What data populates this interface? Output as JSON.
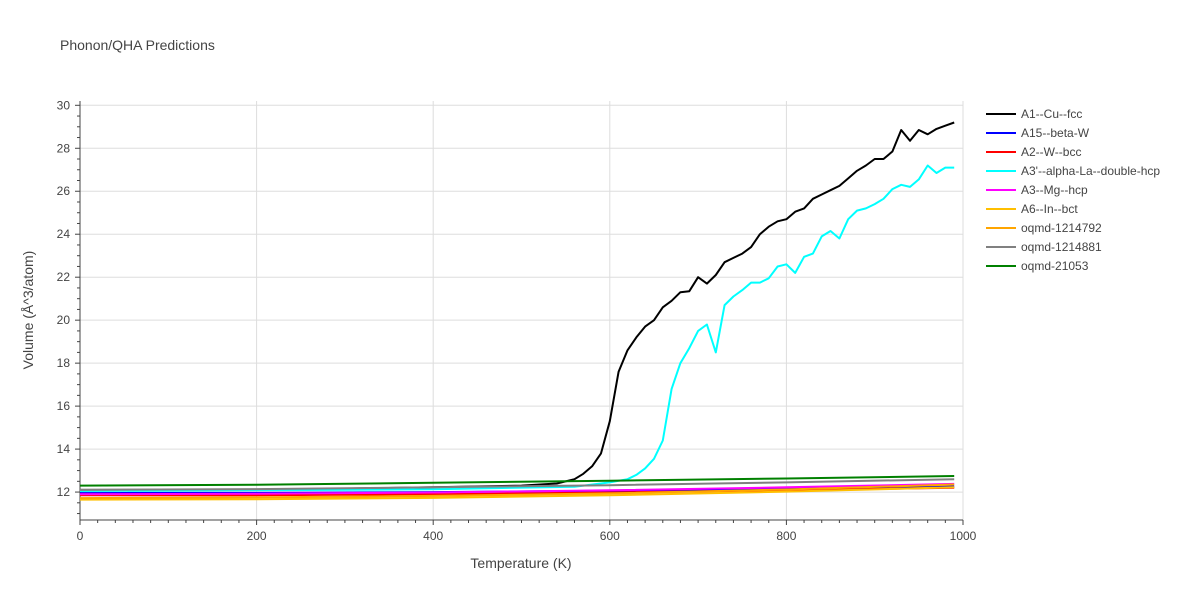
{
  "chart_data": {
    "type": "line",
    "title": "Phonon/QHA Predictions",
    "xlabel": "Temperature (K)",
    "ylabel": "Volume (Å^3/atom)",
    "xlim": [
      0,
      1000
    ],
    "ylim": [
      10.7,
      30.2
    ],
    "x_ticks": [
      0,
      200,
      400,
      600,
      800,
      1000
    ],
    "y_ticks": [
      12,
      14,
      16,
      18,
      20,
      22,
      24,
      26,
      28,
      30
    ],
    "grid": true,
    "legend_position": "right",
    "series": [
      {
        "name": "A1--Cu--fcc",
        "color": "#000000",
        "x": [
          0,
          100,
          200,
          300,
          400,
          500,
          540,
          560,
          570,
          580,
          590,
          600,
          610,
          620,
          630,
          640,
          650,
          660,
          670,
          680,
          690,
          700,
          710,
          720,
          730,
          740,
          750,
          760,
          770,
          780,
          790,
          800,
          810,
          820,
          830,
          840,
          850,
          860,
          870,
          880,
          890,
          900,
          910,
          920,
          930,
          940,
          950,
          960,
          970,
          980,
          990
        ],
        "y": [
          12.1,
          12.1,
          12.12,
          12.16,
          12.22,
          12.3,
          12.4,
          12.6,
          12.85,
          13.2,
          13.8,
          15.3,
          17.6,
          18.6,
          19.2,
          19.7,
          20.0,
          20.6,
          20.9,
          21.3,
          21.35,
          22.0,
          21.7,
          22.1,
          22.7,
          22.9,
          23.1,
          23.4,
          24.0,
          24.35,
          24.6,
          24.7,
          25.05,
          25.2,
          25.65,
          25.85,
          26.05,
          26.25,
          26.6,
          26.95,
          27.2,
          27.5,
          27.5,
          27.85,
          28.85,
          28.35,
          28.85,
          28.65,
          28.9,
          29.05,
          29.2
        ]
      },
      {
        "name": "A15--beta-W",
        "color": "#0000ff",
        "x": [
          0,
          200,
          400,
          600,
          800,
          990
        ],
        "y": [
          11.95,
          11.96,
          12.0,
          12.06,
          12.15,
          12.26
        ]
      },
      {
        "name": "A2--W--bcc",
        "color": "#ff0000",
        "x": [
          0,
          200,
          400,
          600,
          800,
          990
        ],
        "y": [
          11.85,
          11.85,
          11.9,
          11.98,
          12.08,
          12.2
        ]
      },
      {
        "name": "A3'--alpha-La--double-hcp",
        "color": "#00ffff",
        "x": [
          0,
          200,
          400,
          560,
          600,
          620,
          630,
          640,
          650,
          660,
          670,
          680,
          690,
          700,
          710,
          720,
          730,
          740,
          750,
          760,
          770,
          780,
          790,
          800,
          810,
          820,
          830,
          840,
          850,
          860,
          870,
          880,
          890,
          900,
          910,
          920,
          930,
          940,
          950,
          960,
          970,
          980,
          990
        ],
        "y": [
          12.05,
          12.08,
          12.13,
          12.25,
          12.45,
          12.6,
          12.8,
          13.1,
          13.55,
          14.4,
          16.8,
          18.0,
          18.7,
          19.5,
          19.8,
          18.5,
          20.7,
          21.1,
          21.4,
          21.75,
          21.75,
          21.95,
          22.5,
          22.6,
          22.2,
          22.95,
          23.1,
          23.9,
          24.15,
          23.8,
          24.7,
          25.1,
          25.2,
          25.4,
          25.65,
          26.1,
          26.3,
          26.2,
          26.55,
          27.2,
          26.85,
          27.1,
          27.1
        ]
      },
      {
        "name": "A3--Mg--hcp",
        "color": "#ff00ff",
        "x": [
          0,
          200,
          400,
          600,
          800,
          990
        ],
        "y": [
          11.9,
          11.92,
          11.98,
          12.08,
          12.22,
          12.38
        ]
      },
      {
        "name": "A6--In--bct",
        "color": "#ffbf00",
        "x": [
          0,
          200,
          400,
          600,
          800,
          990
        ],
        "y": [
          11.65,
          11.67,
          11.73,
          11.85,
          12.02,
          12.22
        ]
      },
      {
        "name": "oqmd-1214792",
        "color": "#ffa500",
        "x": [
          0,
          200,
          400,
          600,
          800,
          990
        ],
        "y": [
          11.72,
          11.75,
          11.82,
          11.94,
          12.12,
          12.35
        ]
      },
      {
        "name": "oqmd-1214881",
        "color": "#808080",
        "x": [
          0,
          200,
          400,
          600,
          800,
          990
        ],
        "y": [
          12.1,
          12.14,
          12.22,
          12.32,
          12.45,
          12.6
        ]
      },
      {
        "name": "oqmd-21053",
        "color": "#008000",
        "x": [
          0,
          200,
          400,
          600,
          800,
          990
        ],
        "y": [
          12.3,
          12.34,
          12.43,
          12.53,
          12.63,
          12.75
        ]
      }
    ]
  }
}
